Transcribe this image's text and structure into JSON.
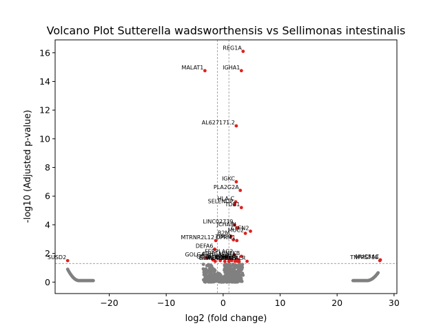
{
  "chart_data": {
    "type": "scatter",
    "title": "Volcano Plot Sutterella wadsworthensis vs Sellimonas intestinalis",
    "xlabel": "log2 (fold change)",
    "ylabel": "-log10 (Adjusted p-value)",
    "xlim": [
      -29.5,
      30.5
    ],
    "ylim": [
      -0.8,
      16.9
    ],
    "xticks": [
      -20,
      -10,
      0,
      10,
      20,
      30
    ],
    "yticks": [
      0,
      2,
      4,
      6,
      8,
      10,
      12,
      14,
      16
    ],
    "xtick_labels": [
      "−20",
      "−10",
      "0",
      "10",
      "20",
      "30"
    ],
    "ytick_labels": [
      "0",
      "2",
      "4",
      "6",
      "8",
      "10",
      "12",
      "14",
      "16"
    ],
    "grid": false,
    "thresholds": {
      "vertical_x": [
        -1,
        1
      ],
      "horizontal_y": 1.3
    },
    "colors": {
      "significant": "#e02020",
      "not_significant": "#808080",
      "threshold_line": "#808080"
    },
    "significant_points": [
      {
        "label": "REG1A",
        "x": 3.5,
        "y": 16.1
      },
      {
        "label": "MALAT1",
        "x": -3.2,
        "y": 14.75
      },
      {
        "label": "IGHA1",
        "x": 3.2,
        "y": 14.75
      },
      {
        "label": "AL627171.2",
        "x": 2.3,
        "y": 10.9
      },
      {
        "label": "IGKC",
        "x": 2.3,
        "y": 7.0
      },
      {
        "label": "PLA2G2A",
        "x": 3.0,
        "y": 6.4
      },
      {
        "label": "HLA-C",
        "x": 2.2,
        "y": 5.6
      },
      {
        "label": "SELENOP",
        "x": 2.0,
        "y": 5.4
      },
      {
        "label": "TOB1",
        "x": 3.2,
        "y": 5.2
      },
      {
        "label": "LINC02739",
        "x": 2.0,
        "y": 4.0
      },
      {
        "label": "JCHAIN",
        "x": 2.5,
        "y": 3.8
      },
      {
        "label": "CLEN2",
        "x": 4.8,
        "y": 3.55
      },
      {
        "label": "MUC2",
        "x": 3.9,
        "y": 3.4
      },
      {
        "label": "B2M",
        "x": 1.4,
        "y": 3.2
      },
      {
        "label": "MTRNR2L12",
        "x": -1.3,
        "y": 2.9
      },
      {
        "label": "TIMP1",
        "x": 1.8,
        "y": 2.95
      },
      {
        "label": "OPRM1",
        "x": 2.4,
        "y": 2.9
      },
      {
        "label": "DEFA6",
        "x": -1.5,
        "y": 2.3
      },
      {
        "label": "FERPLAG2",
        "x": 2.0,
        "y": 1.9
      },
      {
        "label": "GOLGA",
        "x": -3.0,
        "y": 1.7
      },
      {
        "label": "ARHGAP",
        "x": 0.6,
        "y": 1.75
      },
      {
        "label": "NFKB",
        "x": 3.2,
        "y": 1.8
      },
      {
        "label": "S100A6",
        "x": 1.2,
        "y": 1.6
      },
      {
        "label": "SLC26",
        "x": 2.4,
        "y": 1.6
      },
      {
        "label": "CD74",
        "x": -1.8,
        "y": 1.55
      },
      {
        "label": "TFF3",
        "x": 2.6,
        "y": 1.55
      },
      {
        "label": "PIGR",
        "x": -0.5,
        "y": 1.5
      },
      {
        "label": "LCN2",
        "x": 1.5,
        "y": 1.5
      },
      {
        "label": "MUC1",
        "x": 0.3,
        "y": 1.45
      },
      {
        "label": "IFI27",
        "x": 2.8,
        "y": 1.45
      },
      {
        "label": "HLA-DRB1",
        "x": 1.0,
        "y": 1.45
      },
      {
        "label": "TGFBR",
        "x": 2.1,
        "y": 1.45
      },
      {
        "label": "GPX2",
        "x": -1.4,
        "y": 1.45
      },
      {
        "label": "ACTB",
        "x": 2.5,
        "y": 1.45
      },
      {
        "label": "CALR",
        "x": 4.2,
        "y": 1.45
      },
      {
        "label": "SUSD2",
        "x": -27.3,
        "y": 1.5
      },
      {
        "label": "TNFRSF18",
        "x": 27.5,
        "y": 1.5
      },
      {
        "label": "MUC5AC",
        "x": 27.6,
        "y": 1.55
      }
    ],
    "nonsignificant_regions": [
      {
        "region": "left cluster",
        "x_range": [
          -27.3,
          -22.8
        ],
        "y_range": [
          0.1,
          0.9
        ]
      },
      {
        "region": "center cluster",
        "x_range": [
          -3.5,
          3.5
        ],
        "y_range": [
          0.0,
          1.3
        ]
      },
      {
        "region": "right cluster",
        "x_range": [
          22.8,
          27.2
        ],
        "y_range": [
          0.1,
          0.65
        ]
      }
    ]
  }
}
